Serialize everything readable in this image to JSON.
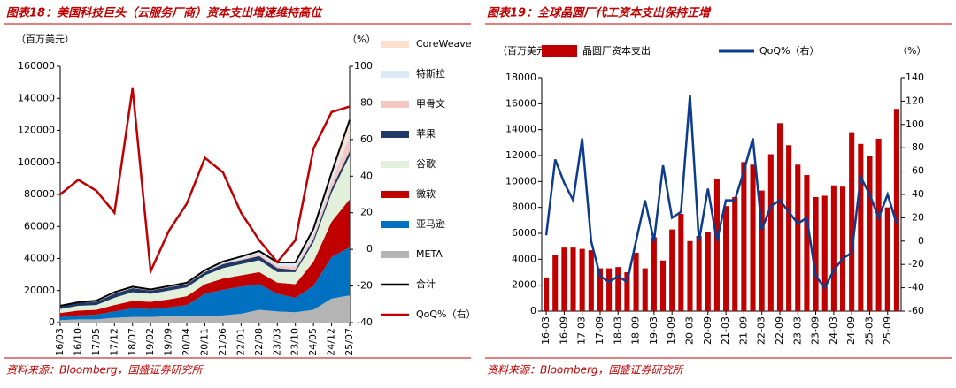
{
  "chart_data": [
    {
      "type": "area",
      "stacked": true,
      "title": "图表18：美国科技巨头（云服务厂商）资本支出增速维持高位",
      "source": "资料来源：Bloomberg，国盛证券研究所",
      "y_label": "（百万美元）",
      "y2_label": "（%）",
      "categories": [
        "16/03",
        "16/10",
        "17/05",
        "17/12",
        "18/07",
        "19/02",
        "19/09",
        "20/04",
        "20/11",
        "21/06",
        "22/01",
        "22/08",
        "23/03",
        "23/10",
        "24/05",
        "24/12",
        "25/07"
      ],
      "ylim": [
        0,
        160000
      ],
      "yticks": [
        0,
        20000,
        40000,
        60000,
        80000,
        100000,
        120000,
        140000,
        160000
      ],
      "y2lim": [
        -40,
        100
      ],
      "y2ticks": [
        -40,
        -20,
        0,
        20,
        40,
        60,
        80,
        100
      ],
      "series": [
        {
          "name": "META",
          "color": "#b4b4b4",
          "values": [
            1500,
            2000,
            2000,
            3000,
            3500,
            3500,
            4000,
            4000,
            4000,
            4500,
            5500,
            8000,
            7000,
            6500,
            8000,
            15000,
            17000
          ]
        },
        {
          "name": "亚马逊",
          "color": "#0070c0",
          "values": [
            2000,
            2500,
            3000,
            4000,
            5500,
            5000,
            5500,
            7000,
            14000,
            16000,
            17000,
            16000,
            11000,
            9000,
            15000,
            26000,
            30000
          ]
        },
        {
          "name": "微软",
          "color": "#c00000",
          "values": [
            2500,
            3000,
            3000,
            4000,
            4500,
            4500,
            5000,
            5500,
            6000,
            7000,
            7000,
            7500,
            7000,
            8500,
            15000,
            22000,
            30000
          ]
        },
        {
          "name": "谷歌",
          "color": "#e2efda",
          "values": [
            2500,
            3000,
            3000,
            4500,
            5500,
            5000,
            5500,
            5500,
            5500,
            6500,
            7000,
            7500,
            6500,
            7500,
            12000,
            18000,
            27000
          ]
        },
        {
          "name": "苹果",
          "color": "#1f3864",
          "values": [
            1500,
            1700,
            2000,
            2500,
            2500,
            2000,
            2000,
            2000,
            2000,
            2500,
            2500,
            2500,
            2500,
            1500,
            2000,
            2500,
            3000
          ]
        },
        {
          "name": "甲骨文",
          "color": "#f4c7c3",
          "values": [
            200,
            200,
            200,
            300,
            300,
            300,
            300,
            300,
            400,
            600,
            700,
            1500,
            1500,
            2000,
            2500,
            4000,
            9000
          ]
        },
        {
          "name": "特斯拉",
          "color": "#dbe9f6",
          "values": [
            300,
            300,
            500,
            700,
            600,
            400,
            500,
            600,
            800,
            1000,
            1500,
            1500,
            1800,
            2000,
            2500,
            3000,
            2500
          ]
        },
        {
          "name": "CoreWeave",
          "color": "#fbe0d0",
          "values": [
            0,
            0,
            0,
            0,
            0,
            0,
            0,
            0,
            0,
            0,
            0,
            200,
            300,
            500,
            1500,
            3000,
            8000
          ]
        },
        {
          "name": "合计",
          "type": "line",
          "color": "#000000",
          "values": [
            10500,
            12700,
            13700,
            19000,
            22400,
            20700,
            22800,
            24900,
            32700,
            38100,
            41200,
            44700,
            37600,
            37500,
            58500,
            93500,
            126500
          ]
        },
        {
          "name": "QoQ%（右）",
          "type": "line",
          "axis": "y2",
          "color": "#c00000",
          "values": [
            30,
            38,
            32,
            20,
            88,
            -12,
            10,
            25,
            50,
            42,
            20,
            5,
            -7,
            5,
            55,
            75,
            78
          ]
        }
      ]
    },
    {
      "type": "bar",
      "title": "图表19：全球晶圆厂代工资本支出保持正增",
      "source": "资料来源：Bloomberg，国盛证券研究所",
      "y_label": "（百万美元）",
      "y2_label": "（%）",
      "categories": [
        "16-03",
        null,
        "16-09",
        null,
        "17-03",
        null,
        "17-09",
        null,
        "18-03",
        null,
        "18-09",
        null,
        "19-03",
        null,
        "19-09",
        null,
        "20-03",
        null,
        "20-09",
        null,
        "21-03",
        null,
        "21-09",
        null,
        "22-03",
        null,
        "22-09",
        null,
        "23-03",
        null,
        "23-09",
        null,
        "24-03",
        null,
        "24-09",
        null,
        "25-03",
        null,
        "25-09",
        null
      ],
      "ylim": [
        0,
        18000
      ],
      "yticks": [
        0,
        2000,
        4000,
        6000,
        8000,
        10000,
        12000,
        14000,
        16000,
        18000
      ],
      "y2lim": [
        -60,
        140
      ],
      "y2ticks": [
        -60,
        -40,
        -20,
        0,
        20,
        40,
        60,
        80,
        100,
        120,
        140
      ],
      "series": [
        {
          "name": "晶圆厂资本支出",
          "color": "#c00000",
          "values": [
            2600,
            4300,
            4900,
            4900,
            4800,
            4700,
            3300,
            3300,
            3400,
            3000,
            4500,
            3300,
            5700,
            3900,
            6300,
            7500,
            5400,
            5800,
            6100,
            10200,
            8100,
            8800,
            11500,
            11300,
            9300,
            12100,
            14500,
            12800,
            11300,
            10500,
            8800,
            8900,
            9700,
            9600,
            13800,
            12900,
            12000,
            13300,
            8000,
            15600
          ]
        },
        {
          "name": "QoQ%（右）",
          "type": "line",
          "axis": "y2",
          "color": "#0d3c8c",
          "values": [
            5,
            70,
            50,
            35,
            88,
            0,
            -30,
            -35,
            -30,
            -35,
            0,
            35,
            0,
            65,
            20,
            25,
            125,
            0,
            45,
            0,
            35,
            35,
            60,
            88,
            10,
            30,
            35,
            25,
            15,
            20,
            -30,
            -40,
            -25,
            -15,
            -10,
            55,
            40,
            20,
            40,
            15
          ]
        }
      ]
    }
  ]
}
